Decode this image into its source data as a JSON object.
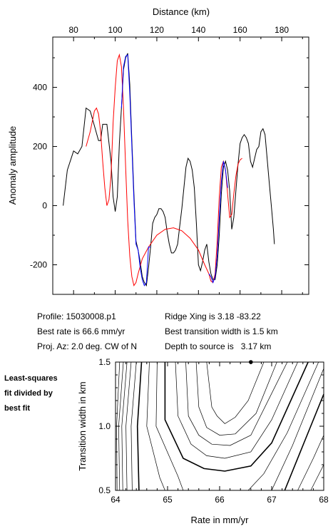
{
  "top_chart": {
    "type": "line",
    "xlabel": "Distance (km)",
    "ylabel": "Anomaly amplitude",
    "xlim": [
      70,
      193
    ],
    "ylim": [
      -300,
      570
    ],
    "x_ticks": [
      80,
      100,
      120,
      140,
      160,
      180
    ],
    "y_ticks": [
      -200,
      0,
      200,
      400
    ],
    "x_tick_labels": [
      "80",
      "100",
      "120",
      "140",
      "160",
      "180"
    ],
    "y_tick_labels": [
      "-200",
      "0",
      "200",
      "400"
    ],
    "series": [
      {
        "color": "#000000",
        "points": [
          [
            75,
            0
          ],
          [
            77,
            120
          ],
          [
            80,
            185
          ],
          [
            82,
            175
          ],
          [
            84,
            200
          ],
          [
            86,
            330
          ],
          [
            88,
            320
          ],
          [
            90,
            270
          ],
          [
            92,
            220
          ],
          [
            93,
            220
          ],
          [
            94,
            275
          ],
          [
            96,
            275
          ],
          [
            98,
            150
          ],
          [
            99,
            30
          ],
          [
            100,
            -20
          ],
          [
            101,
            30
          ],
          [
            102,
            210
          ],
          [
            103,
            330
          ],
          [
            104,
            460
          ],
          [
            105,
            500
          ],
          [
            106,
            515
          ],
          [
            107,
            410
          ],
          [
            108,
            220
          ],
          [
            109,
            40
          ],
          [
            110,
            -120
          ],
          [
            111,
            -150
          ],
          [
            112,
            -190
          ],
          [
            113,
            -240
          ],
          [
            114,
            -260
          ],
          [
            115,
            -270
          ],
          [
            116,
            -210
          ],
          [
            117,
            -140
          ],
          [
            118,
            -60
          ],
          [
            119,
            -40
          ],
          [
            120,
            -30
          ],
          [
            121,
            -10
          ],
          [
            122,
            -10
          ],
          [
            123,
            -20
          ],
          [
            124,
            -40
          ],
          [
            125,
            -90
          ],
          [
            126,
            -130
          ],
          [
            127,
            -160
          ],
          [
            128,
            -160
          ],
          [
            129,
            -150
          ],
          [
            130,
            -130
          ],
          [
            131,
            -70
          ],
          [
            132,
            -10
          ],
          [
            133,
            60
          ],
          [
            134,
            130
          ],
          [
            135,
            160
          ],
          [
            136,
            150
          ],
          [
            137,
            120
          ],
          [
            138,
            60
          ],
          [
            139,
            -60
          ],
          [
            140,
            -200
          ],
          [
            141,
            -220
          ],
          [
            142,
            -190
          ],
          [
            143,
            -150
          ],
          [
            144,
            -130
          ],
          [
            145,
            -190
          ],
          [
            146,
            -230
          ],
          [
            147,
            -250
          ],
          [
            148,
            -250
          ],
          [
            149,
            -200
          ],
          [
            150,
            -100
          ],
          [
            151,
            40
          ],
          [
            152,
            130
          ],
          [
            153,
            150
          ],
          [
            154,
            120
          ],
          [
            155,
            50
          ],
          [
            156,
            -80
          ],
          [
            157,
            -40
          ],
          [
            158,
            50
          ],
          [
            159,
            140
          ],
          [
            160,
            210
          ],
          [
            161,
            230
          ],
          [
            162,
            240
          ],
          [
            163,
            230
          ],
          [
            164,
            210
          ],
          [
            165,
            150
          ],
          [
            166,
            130
          ],
          [
            167,
            160
          ],
          [
            168,
            190
          ],
          [
            169,
            200
          ],
          [
            170,
            250
          ],
          [
            171,
            260
          ],
          [
            172,
            240
          ],
          [
            173,
            160
          ],
          [
            174,
            80
          ],
          [
            175,
            0
          ],
          [
            176,
            -80
          ],
          [
            176.5,
            -130
          ]
        ]
      },
      {
        "color": "#ff0000",
        "points": [
          [
            86,
            200
          ],
          [
            88,
            250
          ],
          [
            90,
            320
          ],
          [
            91,
            330
          ],
          [
            92,
            310
          ],
          [
            93,
            250
          ],
          [
            94,
            150
          ],
          [
            95,
            60
          ],
          [
            96,
            0
          ],
          [
            97,
            20
          ],
          [
            98,
            100
          ],
          [
            99,
            280
          ],
          [
            100,
            400
          ],
          [
            101,
            490
          ],
          [
            102,
            510
          ],
          [
            103,
            470
          ],
          [
            104,
            330
          ],
          [
            105,
            130
          ],
          [
            106,
            -50
          ],
          [
            107,
            -170
          ],
          [
            108,
            -240
          ],
          [
            109,
            -270
          ],
          [
            110,
            -260
          ],
          [
            111,
            -230
          ],
          [
            113,
            -180
          ],
          [
            116,
            -140
          ],
          [
            120,
            -100
          ],
          [
            124,
            -80
          ],
          [
            128,
            -75
          ],
          [
            132,
            -85
          ],
          [
            136,
            -110
          ],
          [
            140,
            -150
          ],
          [
            143,
            -200
          ],
          [
            145,
            -230
          ],
          [
            146,
            -255
          ],
          [
            147,
            -260
          ],
          [
            148,
            -230
          ],
          [
            149,
            -120
          ],
          [
            150,
            30
          ],
          [
            151,
            130
          ],
          [
            152,
            150
          ],
          [
            153,
            120
          ],
          [
            154,
            40
          ],
          [
            155,
            -40
          ],
          [
            156,
            -30
          ],
          [
            157,
            40
          ],
          [
            158,
            100
          ],
          [
            159,
            140
          ],
          [
            160,
            155
          ],
          [
            161,
            160
          ]
        ]
      },
      {
        "color": "#0000ff",
        "points": [
          [
            103,
            330
          ],
          [
            104,
            470
          ],
          [
            105,
            505
          ],
          [
            106,
            510
          ],
          [
            107,
            380
          ],
          [
            108,
            200
          ],
          [
            109,
            20
          ],
          [
            110,
            -130
          ],
          [
            111,
            -150
          ],
          [
            112,
            -210
          ],
          [
            113,
            -250
          ],
          [
            114,
            -270
          ],
          [
            115,
            -260
          ],
          [
            116,
            -140
          ],
          [
            117,
            -140
          ]
        ]
      },
      {
        "color": "#0000ff",
        "points": [
          [
            145,
            -230
          ],
          [
            146,
            -240
          ],
          [
            147,
            -260
          ],
          [
            148,
            -240
          ],
          [
            149,
            -170
          ],
          [
            150,
            -40
          ],
          [
            151,
            80
          ],
          [
            152,
            150
          ],
          [
            153,
            120
          ],
          [
            154,
            60
          ]
        ]
      }
    ]
  },
  "info": {
    "profile": "Profile: 15030008.p1",
    "best_rate": "Best rate is 66.6 mm/yr",
    "proj_az": "Proj. Az: 2.0 deg. CW of N",
    "ridge_xing": "Ridge Xing is 3.18 -83.22",
    "best_transition": "Best transition width is 1.5 km",
    "depth": "Depth to source is   3.17 km"
  },
  "note": {
    "line1": "Least-squares",
    "line2": "fit divided by",
    "line3": "best fit"
  },
  "bottom_chart": {
    "type": "contour",
    "xlabel": "Rate in mm/yr",
    "ylabel": "Transition width in km",
    "xlim": [
      64,
      68
    ],
    "ylim": [
      0.5,
      1.5
    ],
    "x_ticks": [
      64,
      65,
      66,
      67,
      68
    ],
    "y_ticks": [
      0.5,
      1.0,
      1.5
    ],
    "x_tick_labels": [
      "64",
      "65",
      "66",
      "67",
      "68"
    ],
    "y_tick_labels": [
      "0.5",
      "1.0",
      "1.5"
    ],
    "best_point": {
      "rate": 66.6,
      "width": 1.5
    },
    "contours": [
      {
        "bold": false,
        "points": [
          [
            65.75,
            1.5
          ],
          [
            65.85,
            1.15
          ],
          [
            65.95,
            1.08
          ],
          [
            66.1,
            1.02
          ],
          [
            66.3,
            1.07
          ],
          [
            66.55,
            1.2
          ],
          [
            66.85,
            1.5
          ]
        ]
      },
      {
        "bold": false,
        "points": [
          [
            65.55,
            1.5
          ],
          [
            65.6,
            1.15
          ],
          [
            65.75,
            0.99
          ],
          [
            66.0,
            0.93
          ],
          [
            66.3,
            0.94
          ],
          [
            66.7,
            1.1
          ],
          [
            67.1,
            1.5
          ]
        ]
      },
      {
        "bold": false,
        "points": [
          [
            65.35,
            1.5
          ],
          [
            65.4,
            1.08
          ],
          [
            65.6,
            0.93
          ],
          [
            65.85,
            0.86
          ],
          [
            66.2,
            0.85
          ],
          [
            66.6,
            0.93
          ],
          [
            67.3,
            1.5
          ]
        ]
      },
      {
        "bold": false,
        "points": [
          [
            65.15,
            1.5
          ],
          [
            65.2,
            1.08
          ],
          [
            65.45,
            0.86
          ],
          [
            65.75,
            0.77
          ],
          [
            66.1,
            0.75
          ],
          [
            66.6,
            0.8
          ],
          [
            67.0,
            1.05
          ],
          [
            67.5,
            1.5
          ]
        ]
      },
      {
        "bold": true,
        "points": [
          [
            64.95,
            1.5
          ],
          [
            64.95,
            1.05
          ],
          [
            65.3,
            0.75
          ],
          [
            65.7,
            0.67
          ],
          [
            66.1,
            0.65
          ],
          [
            66.6,
            0.69
          ],
          [
            67.0,
            0.87
          ],
          [
            67.7,
            1.5
          ]
        ]
      },
      {
        "bold": false,
        "points": [
          [
            64.8,
            1.5
          ],
          [
            64.78,
            1.0
          ],
          [
            65.2,
            0.61
          ],
          [
            65.3,
            0.5
          ]
        ]
      },
      {
        "bold": false,
        "points": [
          [
            66.55,
            0.5
          ],
          [
            66.85,
            0.63
          ],
          [
            67.3,
            0.95
          ],
          [
            67.9,
            1.5
          ]
        ]
      },
      {
        "bold": false,
        "points": [
          [
            64.65,
            1.5
          ],
          [
            64.6,
            1.0
          ],
          [
            64.85,
            0.6
          ],
          [
            64.95,
            0.5
          ]
        ]
      },
      {
        "bold": false,
        "points": [
          [
            67.0,
            0.5
          ],
          [
            67.4,
            0.85
          ],
          [
            68.0,
            1.45
          ]
        ]
      },
      {
        "bold": true,
        "points": [
          [
            64.5,
            1.5
          ],
          [
            64.42,
            1.0
          ],
          [
            64.45,
            0.5
          ]
        ]
      },
      {
        "bold": true,
        "points": [
          [
            67.25,
            0.5
          ],
          [
            67.6,
            0.85
          ],
          [
            68.0,
            1.25
          ]
        ]
      },
      {
        "bold": false,
        "points": [
          [
            64.4,
            1.5
          ],
          [
            64.3,
            1.0
          ],
          [
            64.32,
            0.5
          ]
        ]
      },
      {
        "bold": false,
        "points": [
          [
            67.5,
            0.5
          ],
          [
            67.8,
            0.75
          ],
          [
            68.0,
            0.93
          ]
        ]
      },
      {
        "bold": false,
        "points": [
          [
            64.3,
            1.5
          ],
          [
            64.2,
            1.0
          ],
          [
            64.22,
            0.5
          ]
        ]
      },
      {
        "bold": false,
        "points": [
          [
            67.75,
            0.5
          ],
          [
            68.0,
            0.7
          ]
        ]
      },
      {
        "bold": false,
        "points": [
          [
            64.22,
            1.5
          ],
          [
            64.12,
            1.0
          ],
          [
            64.14,
            0.5
          ]
        ]
      },
      {
        "bold": false,
        "points": [
          [
            64.15,
            1.5
          ],
          [
            64.06,
            1.0
          ],
          [
            64.08,
            0.5
          ]
        ]
      },
      {
        "bold": false,
        "points": [
          [
            64.08,
            1.5
          ],
          [
            64.02,
            1.0
          ],
          [
            64.03,
            0.5
          ]
        ]
      }
    ]
  }
}
